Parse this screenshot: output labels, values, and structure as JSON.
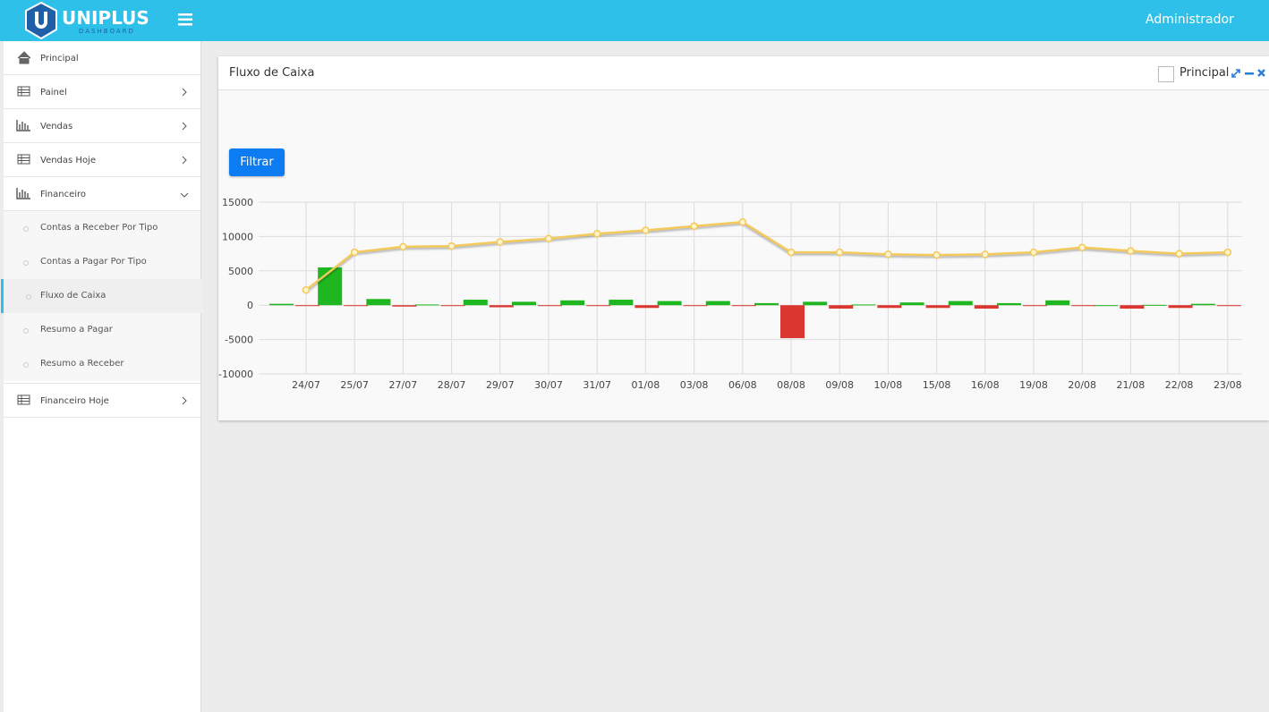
{
  "header": {
    "brand": "UNIPLUS",
    "brand_sub": "DASHBOARD",
    "user": "Administrador"
  },
  "sidebar": {
    "items": [
      "Principal",
      "Painel",
      "Vendas",
      "Vendas Hoje",
      "Financeiro"
    ],
    "submenu": [
      "Contas a Receber Por Tipo",
      "Contas a Pagar Por Tipo",
      "Fluxo de Caixa",
      "Resumo a Pagar",
      "Resumo a Receber"
    ],
    "last": "Financeiro Hoje"
  },
  "panel": {
    "title": "Fluxo de Caixa",
    "checkbox": "Principal",
    "button": "Filtrar"
  },
  "chart_data": {
    "type": "combo",
    "categories": [
      "24/07",
      "25/07",
      "27/07",
      "28/07",
      "29/07",
      "30/07",
      "31/07",
      "01/08",
      "03/08",
      "06/08",
      "08/08",
      "09/08",
      "10/08",
      "15/08",
      "16/08",
      "19/08",
      "20/08",
      "21/08",
      "22/08",
      "23/08"
    ],
    "series": [
      {
        "type": "bar",
        "color": "#1fb71f",
        "values": [
          200,
          5500,
          900,
          100,
          800,
          500,
          700,
          800,
          600,
          600,
          300,
          500,
          100,
          400,
          600,
          300,
          700,
          0,
          50,
          200
        ]
      },
      {
        "type": "bar",
        "color": "#d9372f",
        "values": [
          -50,
          -50,
          -200,
          -50,
          -300,
          -50,
          -50,
          -400,
          -50,
          -50,
          -4800,
          -500,
          -400,
          -400,
          -500,
          -50,
          -50,
          -500,
          -400,
          -50
        ]
      },
      {
        "type": "line",
        "color": "#f3c95a",
        "values": [
          2200,
          7700,
          8500,
          8600,
          9200,
          9700,
          10400,
          10900,
          11500,
          12100,
          7700,
          7700,
          7400,
          7300,
          7400,
          7700,
          8400,
          7900,
          7500,
          7700
        ]
      }
    ],
    "ylim": [
      -10000,
      15000
    ],
    "yticks": [
      -10000,
      -5000,
      0,
      5000,
      10000,
      15000
    ],
    "grid": true
  }
}
